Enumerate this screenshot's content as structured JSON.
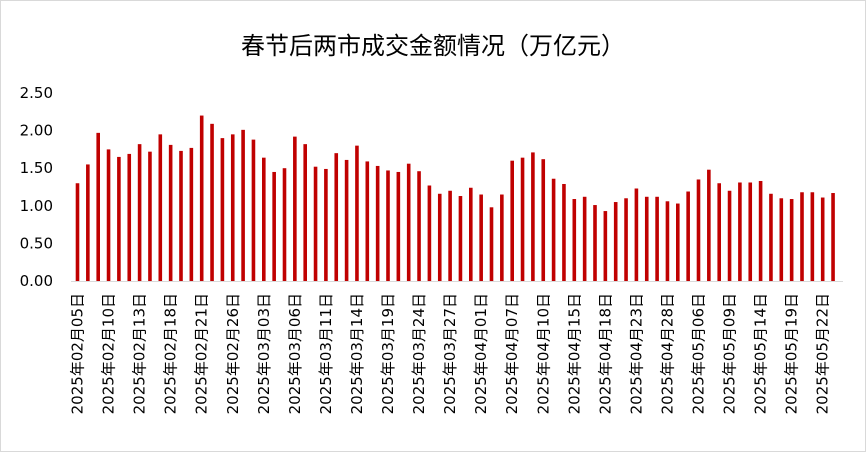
{
  "chart_data": {
    "type": "bar",
    "title": "春节后两市成交金额情况（万亿元）",
    "xlabel": "",
    "ylabel": "",
    "ylim": [
      0,
      2.5
    ],
    "yticks": [
      "0.00",
      "0.50",
      "1.00",
      "1.50",
      "2.00",
      "2.50"
    ],
    "grid": false,
    "legend": "none",
    "bar_color": "#C00000",
    "x_tick_labels": [
      "2025年02月05日",
      "2025年02月10日",
      "2025年02月13日",
      "2025年02月18日",
      "2025年02月21日",
      "2025年02月26日",
      "2025年03月03日",
      "2025年03月06日",
      "2025年03月11日",
      "2025年03月14日",
      "2025年03月19日",
      "2025年03月24日",
      "2025年03月27日",
      "2025年04月01日",
      "2025年04月07日",
      "2025年04月10日",
      "2025年04月15日",
      "2025年04月18日",
      "2025年04月23日",
      "2025年04月28日",
      "2025年05月06日",
      "2025年05月09日",
      "2025年05月14日",
      "2025年05月19日",
      "2025年05月22日"
    ],
    "values": [
      1.3,
      1.55,
      1.97,
      1.75,
      1.65,
      1.69,
      1.82,
      1.72,
      1.95,
      1.81,
      1.73,
      1.77,
      2.2,
      2.09,
      1.9,
      1.95,
      2.01,
      1.88,
      1.64,
      1.45,
      1.5,
      1.92,
      1.82,
      1.52,
      1.49,
      1.7,
      1.61,
      1.8,
      1.59,
      1.53,
      1.47,
      1.45,
      1.56,
      1.46,
      1.27,
      1.16,
      1.2,
      1.13,
      1.24,
      1.15,
      0.98,
      1.15,
      1.6,
      1.64,
      1.71,
      1.62,
      1.36,
      1.29,
      1.09,
      1.12,
      1.01,
      0.93,
      1.05,
      1.1,
      1.23,
      1.12,
      1.12,
      1.06,
      1.03,
      1.19,
      1.35,
      1.48,
      1.3,
      1.2,
      1.31,
      1.31,
      1.33,
      1.16,
      1.1,
      1.09,
      1.18,
      1.18,
      1.11,
      1.17
    ]
  }
}
